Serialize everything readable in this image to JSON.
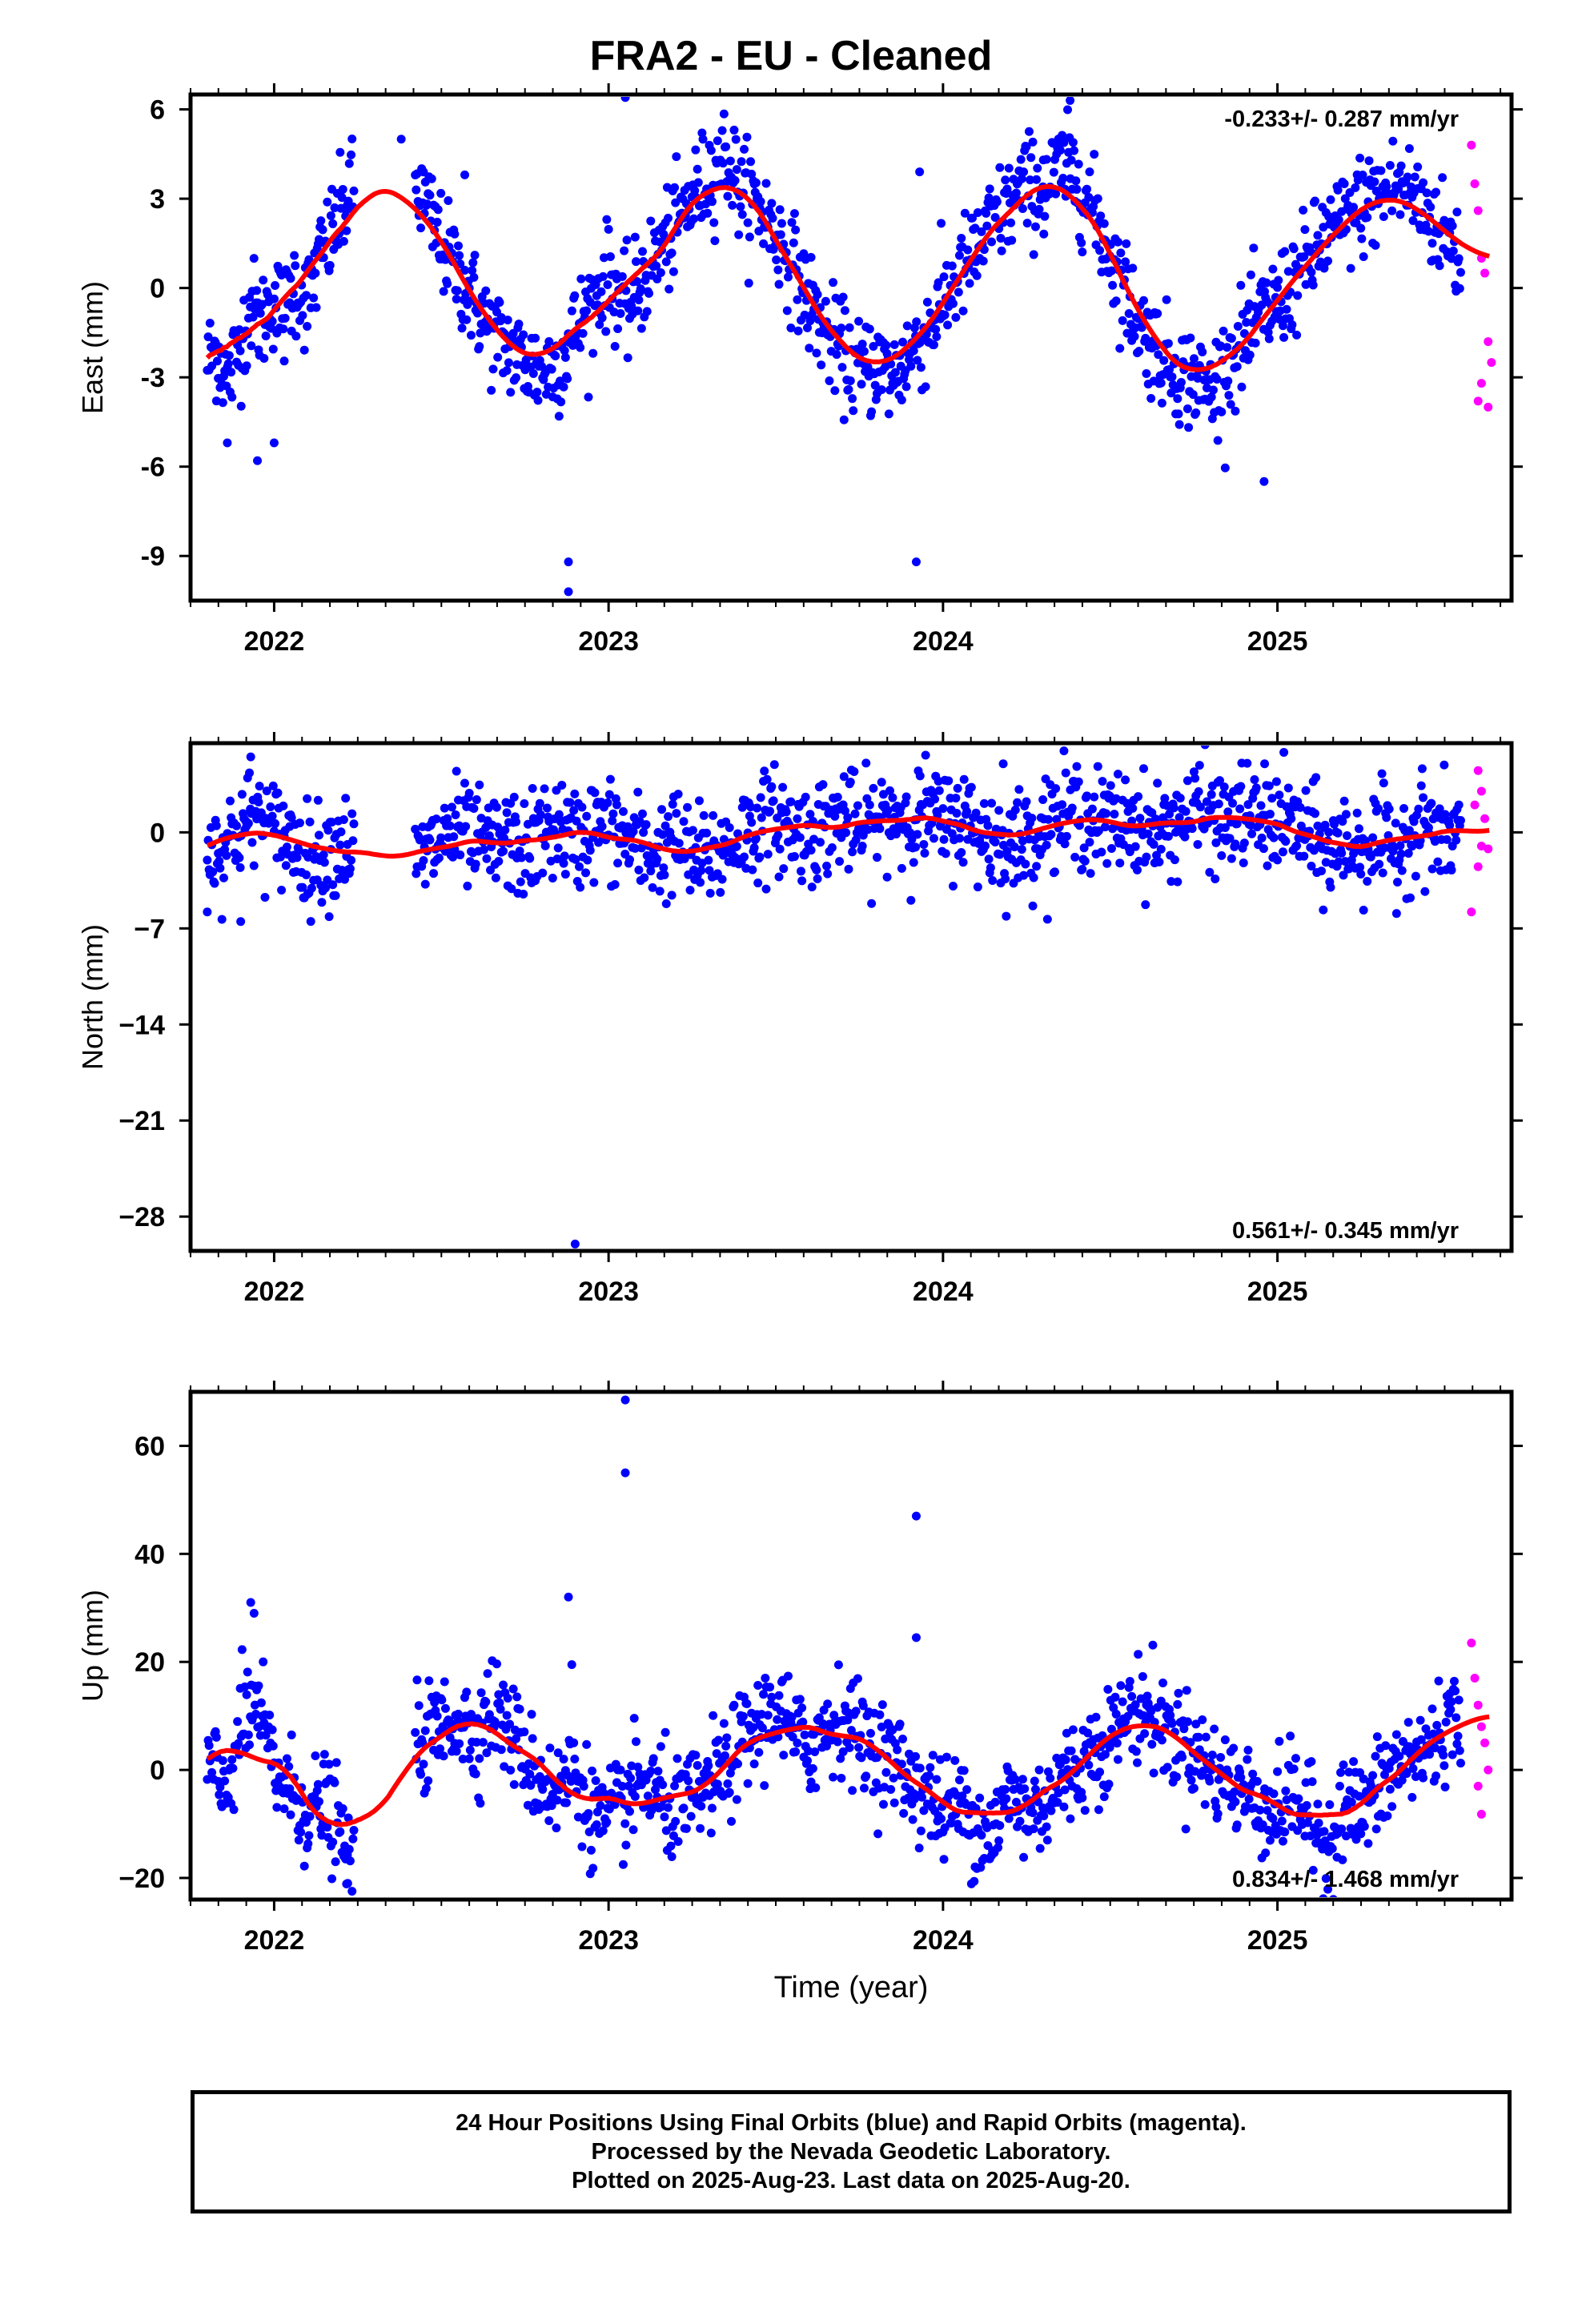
{
  "page": {
    "title": "FRA2  - EU - Cleaned",
    "footer": [
      "24 Hour Positions Using Final Orbits (blue) and Rapid Orbits (magenta).",
      "Processed by the Nevada Geodetic Laboratory.",
      "Plotted on 2025-Aug-23. Last data on 2025-Aug-20."
    ]
  },
  "colors": {
    "final": "#0000ff",
    "rapid": "#ff00ff",
    "fit": "#ff0000",
    "axis": "#000000"
  },
  "chart_data": [
    {
      "type": "scatter",
      "title": "FRA2  - EU - Cleaned",
      "xlabel": "",
      "ylabel": "East (mm)",
      "xlim": [
        2021.75,
        2025.7
      ],
      "ylim": [
        -10.5,
        6.5
      ],
      "xticks": [
        "2022",
        "2023",
        "2024",
        "2025"
      ],
      "yticks": [
        "6",
        "3",
        "0",
        "-3",
        "-6",
        "-9"
      ],
      "rate_label": "-0.233+/- 0.287 mm/yr",
      "grid": false,
      "series": [
        {
          "values_type": "final",
          "x": [
            2021.8,
            2021.83,
            2021.86,
            2021.9,
            2021.93,
            2021.96,
            2022.0,
            2022.03,
            2022.06,
            2022.1,
            2022.13,
            2022.16,
            2022.2,
            2022.23,
            2022.42,
            2022.45,
            2022.5,
            2022.55,
            2022.6,
            2022.65,
            2022.7,
            2022.75,
            2022.8,
            2022.85,
            2022.9,
            2022.95,
            2023.0,
            2023.05,
            2023.1,
            2023.15,
            2023.2,
            2023.25,
            2023.3,
            2023.35,
            2023.4,
            2023.45,
            2023.5,
            2023.55,
            2023.6,
            2023.65,
            2023.7,
            2023.75,
            2023.8,
            2023.85,
            2023.9,
            2023.95,
            2024.0,
            2024.05,
            2024.1,
            2024.15,
            2024.2,
            2024.25,
            2024.3,
            2024.35,
            2024.4,
            2024.45,
            2024.5,
            2024.55,
            2024.6,
            2024.65,
            2024.7,
            2024.75,
            2024.8,
            2024.85,
            2024.9,
            2024.95,
            2025.0,
            2025.05,
            2025.1,
            2025.15,
            2025.2,
            2025.25,
            2025.3,
            2025.35,
            2025.4,
            2025.45,
            2025.5,
            2025.55
          ],
          "y": [
            -2.5,
            -2.0,
            -3.2,
            -1.8,
            -0.5,
            -1.2,
            -0.3,
            -1.0,
            0.2,
            -0.5,
            0.8,
            1.5,
            2.5,
            3.2,
            3.5,
            2.8,
            1.5,
            0.5,
            -0.5,
            -1.5,
            -2.0,
            -2.5,
            -2.8,
            -2.5,
            -1.5,
            -0.5,
            0.5,
            -0.8,
            0.2,
            1.2,
            2.0,
            3.0,
            3.8,
            4.5,
            3.2,
            2.8,
            1.8,
            0.8,
            -0.5,
            -1.5,
            -2.2,
            -2.8,
            -2.5,
            -3.0,
            -2.2,
            -1.5,
            -0.5,
            0.5,
            1.2,
            2.2,
            2.8,
            3.5,
            3.2,
            4.0,
            3.8,
            2.5,
            1.2,
            -0.2,
            -1.5,
            -2.2,
            -2.8,
            -3.0,
            -3.5,
            -2.5,
            -1.8,
            -1.0,
            -0.5,
            0.2,
            1.0,
            1.8,
            2.2,
            2.8,
            3.0,
            3.5,
            3.2,
            2.5,
            1.8,
            1.0
          ],
          "outliers_x": [
            2021.86,
            2021.95,
            2022.0,
            2022.38,
            2022.57,
            2022.88,
            2022.88,
            2023.05,
            2023.93,
            2023.92,
            2024.3,
            2024.38,
            2024.96
          ],
          "outliers_y": [
            -5.2,
            -5.8,
            -5.2,
            5.0,
            3.8,
            -9.2,
            -10.2,
            6.4,
            3.9,
            -9.2,
            4.3,
            6.3,
            -6.5
          ]
        },
        {
          "values_type": "rapid",
          "x": [
            2025.58,
            2025.59,
            2025.6,
            2025.61,
            2025.62,
            2025.63,
            2025.64,
            2025.6,
            2025.61,
            2025.63
          ],
          "y": [
            4.8,
            3.5,
            2.6,
            1.0,
            0.5,
            -1.8,
            -2.5,
            -3.8,
            -3.2,
            -4.0
          ]
        }
      ]
    },
    {
      "type": "scatter",
      "xlabel": "",
      "ylabel": "North (mm)",
      "xlim": [
        2021.75,
        2025.7
      ],
      "ylim": [
        -30.5,
        6.5
      ],
      "xticks": [
        "2022",
        "2023",
        "2024",
        "2025"
      ],
      "yticks": [
        "0",
        "−7",
        "−14",
        "−21",
        "−28"
      ],
      "rate_label": "0.561+/- 0.345 mm/yr",
      "grid": false,
      "series": [
        {
          "values_type": "final",
          "x": [
            2021.8,
            2021.85,
            2021.9,
            2021.95,
            2022.0,
            2022.05,
            2022.1,
            2022.15,
            2022.2,
            2022.42,
            2022.5,
            2022.55,
            2022.6,
            2022.65,
            2022.7,
            2022.75,
            2022.8,
            2022.85,
            2022.9,
            2022.95,
            2023.0,
            2023.05,
            2023.1,
            2023.15,
            2023.2,
            2023.25,
            2023.3,
            2023.35,
            2023.4,
            2023.45,
            2023.5,
            2023.55,
            2023.6,
            2023.65,
            2023.7,
            2023.75,
            2023.8,
            2023.85,
            2023.9,
            2023.95,
            2024.0,
            2024.05,
            2024.1,
            2024.15,
            2024.2,
            2024.25,
            2024.3,
            2024.35,
            2024.4,
            2024.45,
            2024.5,
            2024.55,
            2024.6,
            2024.65,
            2024.7,
            2024.75,
            2024.8,
            2024.85,
            2024.9,
            2024.95,
            2025.0,
            2025.05,
            2025.1,
            2025.15,
            2025.2,
            2025.25,
            2025.3,
            2025.35,
            2025.4,
            2025.45,
            2025.5,
            2025.55
          ],
          "y": [
            -1.5,
            -1.0,
            0.5,
            1.2,
            0.0,
            -0.5,
            -2.0,
            -1.5,
            -0.8,
            -2.5,
            -0.5,
            0.2,
            -0.8,
            -1.2,
            -0.5,
            -1.5,
            -0.2,
            0.5,
            -0.8,
            0.5,
            0.2,
            -0.5,
            -1.2,
            -1.5,
            -0.5,
            -2.0,
            -1.8,
            -1.2,
            -0.2,
            0.5,
            1.0,
            0.2,
            -0.2,
            0.5,
            1.2,
            0.0,
            0.5,
            1.5,
            0.8,
            1.5,
            0.5,
            1.2,
            0.2,
            -0.5,
            -1.0,
            -0.5,
            0.5,
            1.0,
            1.5,
            0.8,
            0.5,
            1.0,
            0.2,
            -0.2,
            0.8,
            1.5,
            1.2,
            0.5,
            1.5,
            0.8,
            1.0,
            0.5,
            -0.5,
            -1.5,
            -0.8,
            -1.2,
            -0.5,
            -1.5,
            0.2,
            0.5,
            -0.5,
            0.2
          ],
          "outliers_x": [
            2021.8,
            2021.9,
            2021.93,
            2022.1,
            2022.9,
            2024.18
          ],
          "outliers_y": [
            -5.8,
            -6.5,
            5.5,
            -4.5,
            -30.0,
            5.0
          ],
          "fit_note": ""
        },
        {
          "values_type": "rapid",
          "x": [
            2025.58,
            2025.59,
            2025.6,
            2025.61,
            2025.62,
            2025.63,
            2025.6,
            2025.61
          ],
          "y": [
            -5.8,
            2.0,
            4.5,
            3.0,
            1.0,
            -1.2,
            -2.5,
            -1.0
          ]
        }
      ]
    },
    {
      "type": "scatter",
      "xlabel": "Time (year)",
      "ylabel": "Up (mm)",
      "xlim": [
        2021.75,
        2025.7
      ],
      "ylim": [
        -24,
        70
      ],
      "xticks": [
        "2022",
        "2023",
        "2024",
        "2025"
      ],
      "yticks": [
        "60",
        "40",
        "20",
        "0",
        "−20"
      ],
      "rate_label": "0.834+/- 1.468 mm/yr",
      "grid": false,
      "series": [
        {
          "values_type": "final",
          "x": [
            2021.8,
            2021.85,
            2021.9,
            2021.95,
            2022.0,
            2022.05,
            2022.1,
            2022.15,
            2022.2,
            2022.22,
            2022.42,
            2022.5,
            2022.55,
            2022.6,
            2022.65,
            2022.7,
            2022.75,
            2022.8,
            2022.85,
            2022.9,
            2022.95,
            2023.0,
            2023.05,
            2023.1,
            2023.15,
            2023.2,
            2023.25,
            2023.3,
            2023.35,
            2023.4,
            2023.45,
            2023.5,
            2023.55,
            2023.6,
            2023.65,
            2023.7,
            2023.75,
            2023.8,
            2023.85,
            2023.9,
            2023.95,
            2024.0,
            2024.05,
            2024.1,
            2024.15,
            2024.2,
            2024.25,
            2024.3,
            2024.35,
            2024.4,
            2024.45,
            2024.5,
            2024.55,
            2024.6,
            2024.65,
            2024.7,
            2024.75,
            2024.8,
            2024.85,
            2024.9,
            2024.95,
            2025.0,
            2025.05,
            2025.1,
            2025.15,
            2025.2,
            2025.25,
            2025.3,
            2025.35,
            2025.4,
            2025.45,
            2025.5,
            2025.55
          ],
          "y": [
            2,
            -5,
            8,
            12,
            0,
            -4,
            -8,
            -6,
            -12,
            -18,
            4,
            8,
            10,
            6,
            12,
            8,
            2,
            -2,
            -4,
            0,
            -8,
            -10,
            -6,
            -2,
            -5,
            -8,
            -6,
            -3,
            0,
            5,
            8,
            12,
            6,
            4,
            8,
            10,
            6,
            4,
            2,
            -2,
            -4,
            -8,
            -6,
            -10,
            -12,
            -4,
            -8,
            -6,
            -2,
            0,
            4,
            6,
            10,
            12,
            8,
            6,
            4,
            0,
            -2,
            -4,
            -6,
            -8,
            -4,
            -10,
            -14,
            -6,
            -8,
            -4,
            0,
            2,
            4,
            8,
            10
          ],
          "outliers_x": [
            2021.93,
            2021.94,
            2022.22,
            2022.88,
            2022.89,
            2023.05,
            2023.05,
            2023.92,
            2023.92
          ],
          "outliers_y": [
            31,
            29,
            -21,
            32,
            19.5,
            68.5,
            55,
            47,
            24.5
          ]
        },
        {
          "values_type": "rapid",
          "x": [
            2025.58,
            2025.59,
            2025.6,
            2025.61,
            2025.62,
            2025.63,
            2025.6,
            2025.61
          ],
          "y": [
            23.5,
            17,
            12,
            8,
            5,
            0,
            -3,
            -8.2
          ]
        }
      ]
    }
  ]
}
